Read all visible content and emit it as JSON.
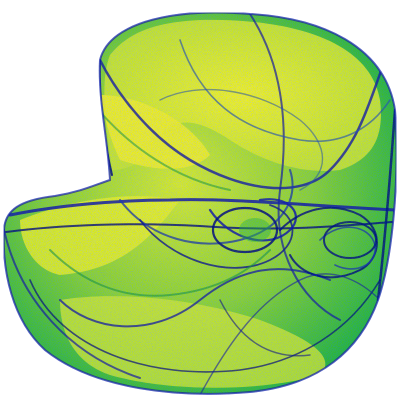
{
  "image": {
    "subject": "strange-attractor",
    "background_color": "#ffffff",
    "palette": {
      "dense": "#1a1aa8",
      "mid": "#14b414",
      "light": "#e8f000",
      "deep_edge": "#0a0a7a"
    },
    "texture": "noise-speckle"
  }
}
